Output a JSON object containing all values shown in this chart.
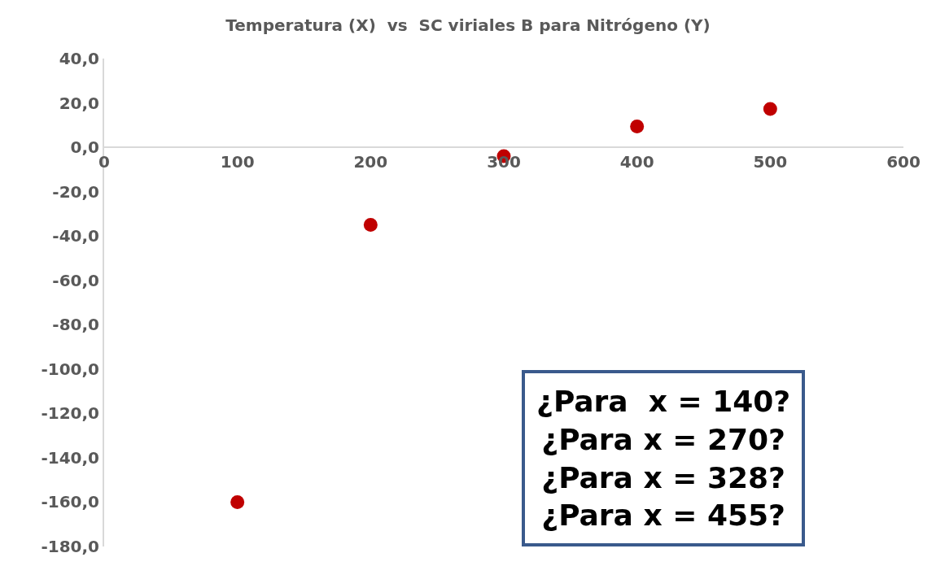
{
  "chart_data": {
    "type": "scatter",
    "title": "Temperatura (X)  vs  SC viriales B para Nitrógeno (Y)",
    "x": [
      100,
      200,
      300,
      400,
      500
    ],
    "series": [
      {
        "color": "#c00000",
        "values": [
          -160,
          -35,
          -4,
          9.4,
          17.3
        ]
      }
    ],
    "marker": "circle",
    "xlim": [
      0,
      600
    ],
    "xticks": [
      0,
      100,
      200,
      300,
      400,
      500,
      600
    ],
    "ylim": [
      -180,
      40
    ],
    "yticks": [
      {
        "value": 40,
        "label": "40,0"
      },
      {
        "value": 20,
        "label": "20,0"
      },
      {
        "value": 0,
        "label": "0,0"
      },
      {
        "value": -20,
        "label": "-20,0"
      },
      {
        "value": -40,
        "label": "-40,0"
      },
      {
        "value": -60,
        "label": "-60,0"
      },
      {
        "value": -80,
        "label": "-80,0"
      },
      {
        "value": -100,
        "label": "-100,0"
      },
      {
        "value": -120,
        "label": "-120,0"
      },
      {
        "value": -140,
        "label": "-140,0"
      },
      {
        "value": -160,
        "label": "-160,0"
      },
      {
        "value": -180,
        "label": "-180,0"
      }
    ],
    "annotations": [
      "¿Para  x = 140?\n¿Para x = 270?\n¿Para x = 328?\n¿Para x = 455?"
    ]
  }
}
